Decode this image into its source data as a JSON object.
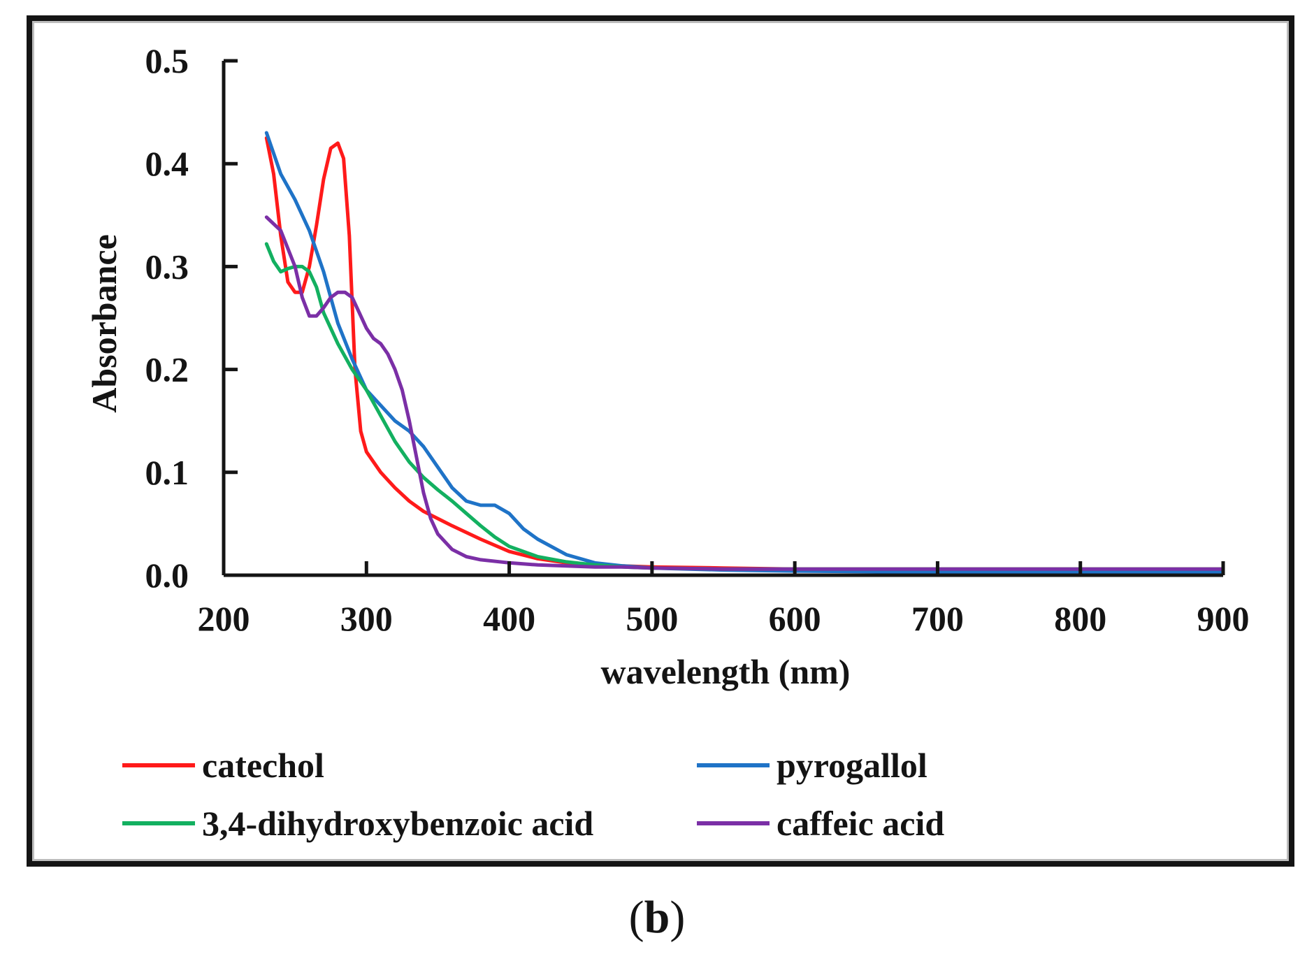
{
  "figure": {
    "panel_open": "(",
    "panel_letter": "b",
    "panel_close": ")"
  },
  "chart_data": {
    "type": "line",
    "title": "",
    "xlabel": "wavelength (nm)",
    "ylabel": "Absorbance",
    "xlim": [
      200,
      900
    ],
    "ylim": [
      0,
      0.5
    ],
    "xticks": [
      200,
      300,
      400,
      500,
      600,
      700,
      800,
      900
    ],
    "xtick_labels": [
      "200",
      "300",
      "400",
      "500",
      "600",
      "700",
      "800",
      "900"
    ],
    "yticks": [
      0,
      0.1,
      0.2,
      0.3,
      0.4,
      0.5
    ],
    "ytick_labels": [
      "0.0",
      "0.1",
      "0.2",
      "0.3",
      "0.4",
      "0.5"
    ],
    "grid": false,
    "legend_position": "bottom",
    "series": [
      {
        "name": "catechol",
        "color": "#ff1a1a",
        "x": [
          230,
          235,
          240,
          245,
          250,
          255,
          260,
          265,
          270,
          275,
          280,
          284,
          288,
          292,
          296,
          300,
          310,
          320,
          330,
          340,
          360,
          380,
          400,
          420,
          440,
          460,
          480,
          500,
          550,
          600,
          700,
          800,
          900
        ],
        "y": [
          0.425,
          0.39,
          0.33,
          0.285,
          0.275,
          0.275,
          0.3,
          0.34,
          0.385,
          0.415,
          0.42,
          0.405,
          0.33,
          0.2,
          0.14,
          0.12,
          0.1,
          0.085,
          0.072,
          0.062,
          0.048,
          0.035,
          0.023,
          0.016,
          0.012,
          0.01,
          0.009,
          0.008,
          0.007,
          0.006,
          0.006,
          0.006,
          0.006
        ]
      },
      {
        "name": "pyrogallol",
        "color": "#1f73c7",
        "x": [
          230,
          240,
          250,
          260,
          270,
          280,
          290,
          300,
          310,
          320,
          330,
          340,
          350,
          360,
          370,
          380,
          390,
          400,
          410,
          420,
          440,
          460,
          480,
          500,
          550,
          600,
          700,
          800,
          900
        ],
        "y": [
          0.43,
          0.39,
          0.365,
          0.335,
          0.295,
          0.245,
          0.21,
          0.18,
          0.165,
          0.15,
          0.14,
          0.125,
          0.105,
          0.085,
          0.072,
          0.068,
          0.068,
          0.06,
          0.045,
          0.035,
          0.02,
          0.012,
          0.009,
          0.007,
          0.005,
          0.004,
          0.003,
          0.003,
          0.003
        ]
      },
      {
        "name": "3,4-dihydroxybenzoic acid",
        "color": "#13b060",
        "x": [
          230,
          235,
          240,
          245,
          250,
          255,
          260,
          265,
          270,
          280,
          290,
          300,
          310,
          320,
          330,
          340,
          350,
          360,
          370,
          380,
          390,
          400,
          420,
          440,
          460,
          480,
          500,
          550,
          600,
          700,
          800,
          900
        ],
        "y": [
          0.322,
          0.305,
          0.295,
          0.298,
          0.3,
          0.3,
          0.295,
          0.28,
          0.255,
          0.225,
          0.2,
          0.18,
          0.155,
          0.13,
          0.11,
          0.095,
          0.083,
          0.072,
          0.06,
          0.048,
          0.037,
          0.028,
          0.018,
          0.013,
          0.01,
          0.008,
          0.007,
          0.006,
          0.006,
          0.006,
          0.006,
          0.006
        ]
      },
      {
        "name": "caffeic acid",
        "color": "#7b2fa6",
        "x": [
          230,
          240,
          250,
          255,
          260,
          265,
          270,
          275,
          280,
          285,
          290,
          295,
          300,
          305,
          310,
          315,
          320,
          325,
          330,
          335,
          340,
          345,
          350,
          360,
          370,
          380,
          400,
          420,
          440,
          460,
          480,
          500,
          550,
          600,
          700,
          800,
          900
        ],
        "y": [
          0.348,
          0.335,
          0.3,
          0.27,
          0.252,
          0.252,
          0.26,
          0.27,
          0.275,
          0.275,
          0.27,
          0.255,
          0.24,
          0.23,
          0.225,
          0.215,
          0.2,
          0.18,
          0.15,
          0.115,
          0.08,
          0.055,
          0.04,
          0.025,
          0.018,
          0.015,
          0.012,
          0.01,
          0.009,
          0.008,
          0.008,
          0.007,
          0.006,
          0.006,
          0.006,
          0.006,
          0.006
        ]
      }
    ]
  }
}
